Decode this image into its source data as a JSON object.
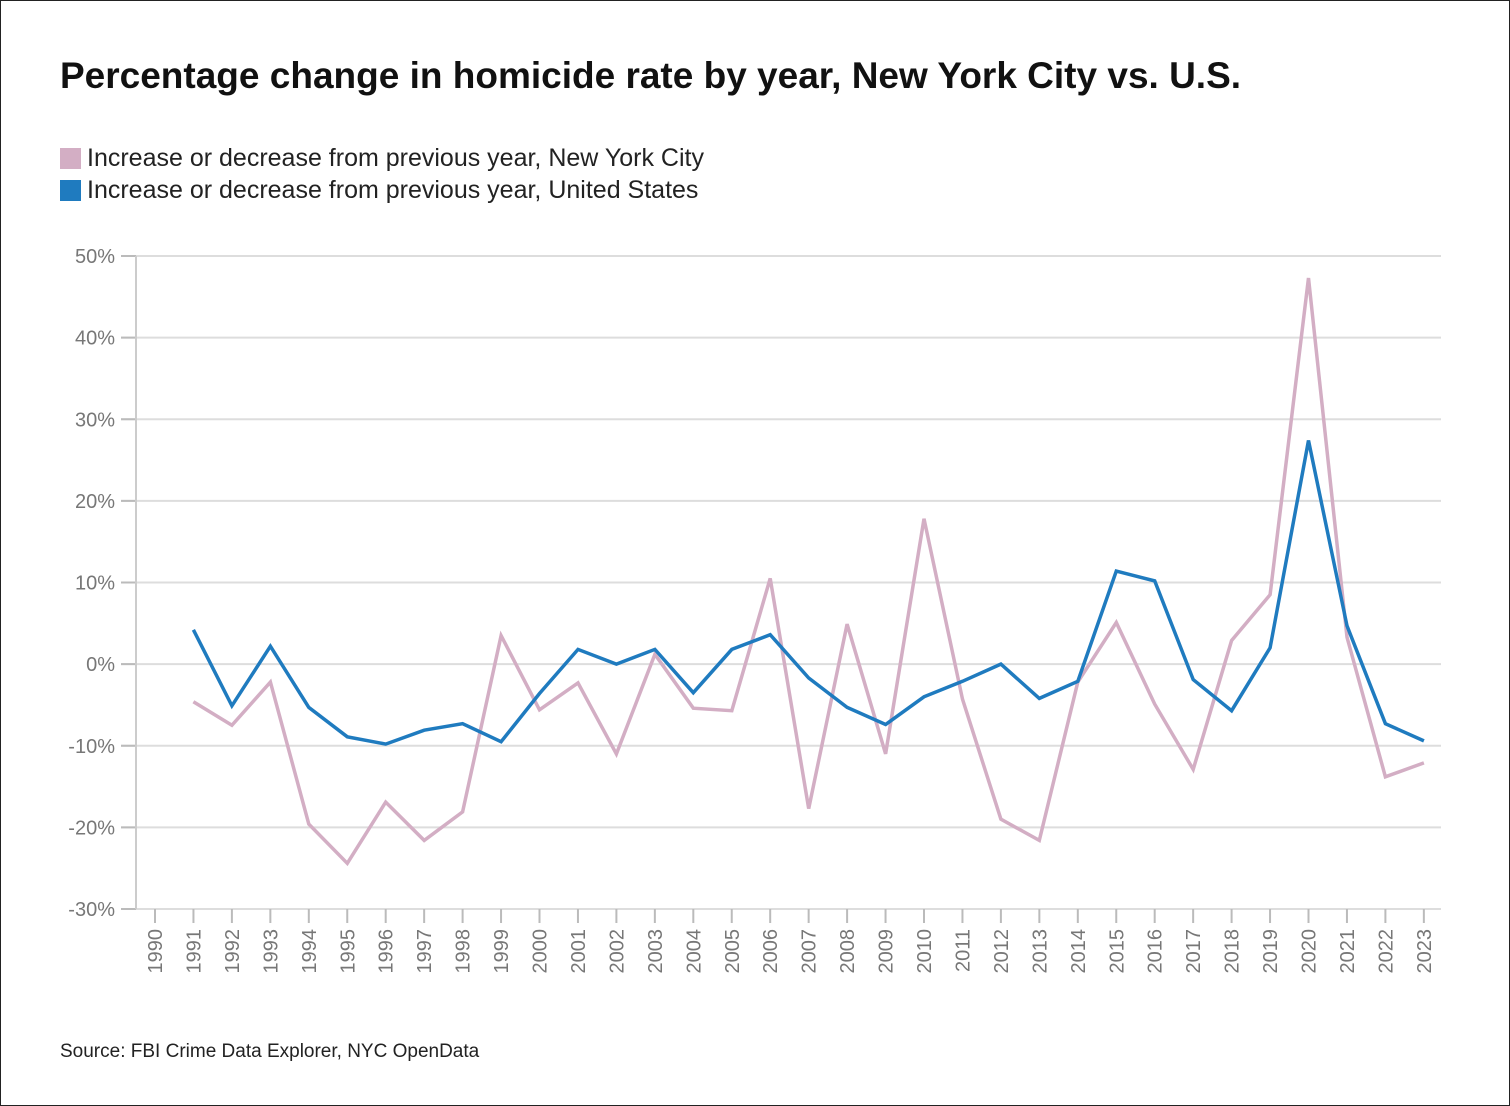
{
  "title": "Percentage change in homicide rate by year, New York City vs. U.S.",
  "source": "Source: FBI Crime Data Explorer, NYC OpenData",
  "colors": {
    "nyc": "#d3aec4",
    "us": "#1f7bbf",
    "grid": "#dddddd",
    "axis_text": "#777777"
  },
  "chart_data": {
    "type": "line",
    "title": "Percentage change in homicide rate by year, New York City vs. U.S.",
    "xlabel": "",
    "ylabel": "",
    "ylim": [
      -30,
      50
    ],
    "yticks": [
      50,
      40,
      30,
      20,
      10,
      0,
      -10,
      -20,
      -30
    ],
    "ytick_labels": [
      "50%",
      "40%",
      "30%",
      "20%",
      "10%",
      "0%",
      "-10%",
      "-20%",
      "-30%"
    ],
    "x": [
      "1990",
      "1991",
      "1992",
      "1993",
      "1994",
      "1995",
      "1996",
      "1997",
      "1998",
      "1999",
      "2000",
      "2001",
      "2002",
      "2003",
      "2004",
      "2005",
      "2006",
      "2007",
      "2008",
      "2009",
      "2010",
      "2011",
      "2012",
      "2013",
      "2014",
      "2015",
      "2016",
      "2017",
      "2018",
      "2019",
      "2020",
      "2021",
      "2022",
      "2023"
    ],
    "grid": true,
    "legend_position": "top-left",
    "series": [
      {
        "name": "Increase or decrease from previous year, New York City",
        "color": "#d3aec4",
        "values": [
          null,
          -4.6,
          -7.5,
          -2.2,
          -19.6,
          -24.4,
          -16.9,
          -21.6,
          -18.1,
          3.5,
          -5.6,
          -2.3,
          -11.0,
          1.2,
          -5.4,
          -5.7,
          10.5,
          -17.7,
          4.9,
          -11.0,
          17.8,
          -4.3,
          -19.0,
          -21.6,
          -2.2,
          5.1,
          -4.9,
          -12.9,
          2.9,
          8.5,
          47.3,
          3.3,
          -13.8,
          -12.1
        ]
      },
      {
        "name": "Increase or decrease from previous year, United States",
        "color": "#1f7bbf",
        "values": [
          null,
          4.2,
          -5.1,
          2.2,
          -5.3,
          -8.9,
          -9.8,
          -8.1,
          -7.3,
          -9.5,
          -3.6,
          1.8,
          0.0,
          1.8,
          -3.5,
          1.8,
          3.6,
          -1.7,
          -5.3,
          -7.4,
          -4.0,
          -2.1,
          0.0,
          -4.2,
          -2.1,
          11.4,
          10.2,
          -1.9,
          -5.7,
          2.0,
          27.4,
          4.7,
          -7.3,
          -9.4
        ]
      }
    ]
  }
}
